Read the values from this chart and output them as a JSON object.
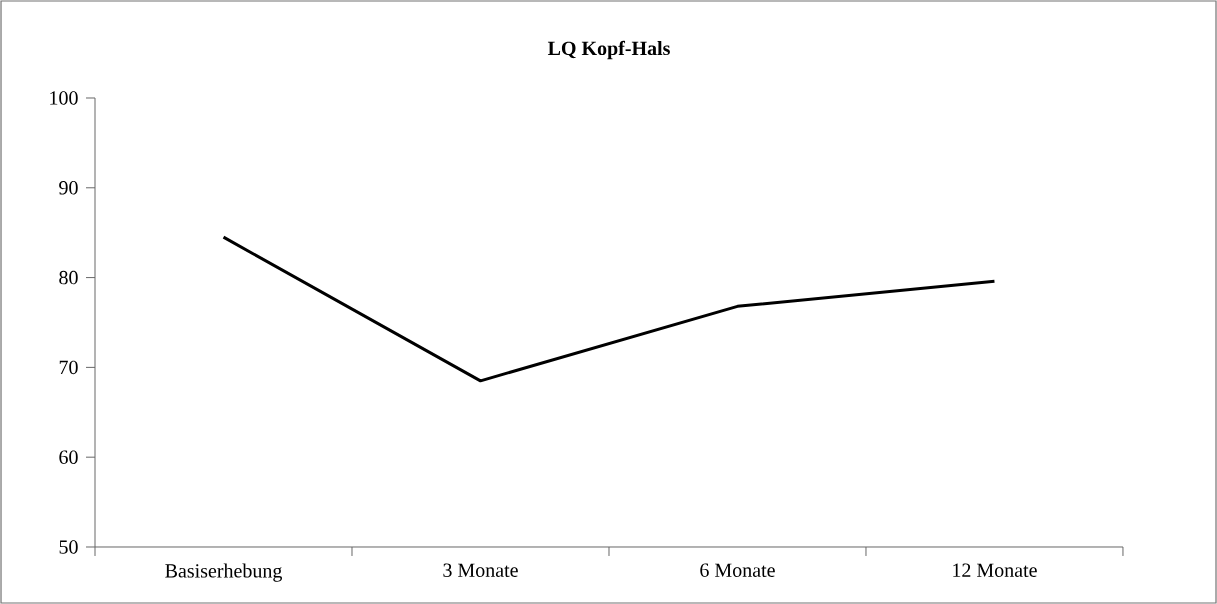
{
  "chart_data": {
    "type": "line",
    "title": "LQ Kopf-Hals",
    "categories": [
      "Basiserhebung",
      "3 Monate",
      "6 Monate",
      "12 Monate"
    ],
    "values": [
      84.5,
      68.5,
      76.8,
      79.6
    ],
    "color": "#000000",
    "ylim": [
      50,
      100
    ],
    "yticks": [
      50,
      60,
      70,
      80,
      90,
      100
    ],
    "grid": false,
    "marker": "none",
    "line_style": "solid"
  }
}
